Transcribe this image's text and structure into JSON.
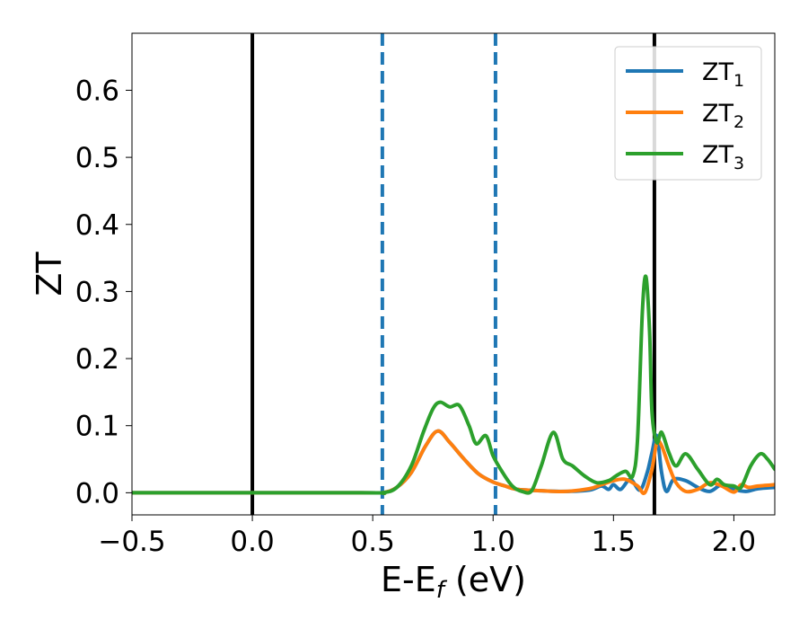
{
  "chart_data": {
    "type": "line",
    "title": "",
    "xlabel": {
      "base": "E-E",
      "sub": "f",
      "rest": " (eV)"
    },
    "ylabel": "ZT",
    "xlim": [
      -0.5,
      2.17
    ],
    "ylim": [
      -0.033,
      0.685
    ],
    "xticks": [
      -0.5,
      0.0,
      0.5,
      1.0,
      1.5,
      2.0
    ],
    "xtick_labels": [
      "−0.5",
      "0.0",
      "0.5",
      "1.0",
      "1.5",
      "2.0"
    ],
    "yticks": [
      0.0,
      0.1,
      0.2,
      0.3,
      0.4,
      0.5,
      0.6
    ],
    "ytick_labels": [
      "0.0",
      "0.1",
      "0.2",
      "0.3",
      "0.4",
      "0.5",
      "0.6"
    ],
    "grid": false,
    "legend_position": "top-right",
    "vlines": [
      {
        "x": 0.0,
        "color": "#000000",
        "style": "solid"
      },
      {
        "x": 0.54,
        "color": "#1f77b4",
        "style": "dashed"
      },
      {
        "x": 1.01,
        "color": "#1f77b4",
        "style": "dashed"
      },
      {
        "x": 1.67,
        "color": "#000000",
        "style": "solid"
      }
    ],
    "series": [
      {
        "name": {
          "base": "ZT",
          "sub": "1"
        },
        "color": "#1f77b4",
        "x": [
          -0.5,
          0.45,
          0.54,
          0.6,
          0.66,
          0.72,
          0.77,
          0.82,
          0.88,
          0.94,
          1.0,
          1.05,
          1.1,
          1.2,
          1.3,
          1.4,
          1.45,
          1.48,
          1.5,
          1.53,
          1.57,
          1.61,
          1.64,
          1.66,
          1.68,
          1.7,
          1.72,
          1.75,
          1.8,
          1.85,
          1.9,
          1.95,
          2.0,
          2.05,
          2.1,
          2.17
        ],
        "y": [
          0.0,
          0.0,
          0.0,
          0.008,
          0.03,
          0.07,
          0.092,
          0.075,
          0.05,
          0.028,
          0.016,
          0.01,
          0.005,
          0.003,
          0.002,
          0.004,
          0.01,
          0.005,
          0.012,
          0.005,
          0.02,
          0.004,
          0.03,
          0.06,
          0.085,
          0.03,
          0.002,
          0.02,
          0.018,
          0.008,
          0.002,
          0.012,
          0.005,
          0.002,
          0.006,
          0.008
        ]
      },
      {
        "name": {
          "base": "ZT",
          "sub": "2"
        },
        "color": "#ff7f0e",
        "x": [
          -0.5,
          0.45,
          0.54,
          0.6,
          0.66,
          0.72,
          0.77,
          0.82,
          0.88,
          0.94,
          1.0,
          1.05,
          1.1,
          1.2,
          1.3,
          1.4,
          1.45,
          1.5,
          1.55,
          1.6,
          1.63,
          1.66,
          1.68,
          1.7,
          1.73,
          1.76,
          1.8,
          1.85,
          1.9,
          1.95,
          2.0,
          2.03,
          2.06,
          2.1,
          2.17
        ],
        "y": [
          0.0,
          0.0,
          0.0,
          0.008,
          0.03,
          0.07,
          0.092,
          0.075,
          0.05,
          0.028,
          0.016,
          0.01,
          0.005,
          0.003,
          0.002,
          0.006,
          0.012,
          0.018,
          0.02,
          0.01,
          0.0,
          0.035,
          0.075,
          0.07,
          0.04,
          0.015,
          0.002,
          0.005,
          0.015,
          0.01,
          0.001,
          0.012,
          0.008,
          0.01,
          0.012
        ]
      },
      {
        "name": {
          "base": "ZT",
          "sub": "3"
        },
        "color": "#2ca02c",
        "x": [
          -0.5,
          0.45,
          0.54,
          0.6,
          0.66,
          0.71,
          0.75,
          0.78,
          0.82,
          0.86,
          0.9,
          0.93,
          0.97,
          1.0,
          1.04,
          1.08,
          1.12,
          1.16,
          1.2,
          1.25,
          1.29,
          1.33,
          1.38,
          1.43,
          1.48,
          1.51,
          1.55,
          1.58,
          1.6,
          1.62,
          1.635,
          1.65,
          1.66,
          1.68,
          1.7,
          1.73,
          1.76,
          1.8,
          1.85,
          1.9,
          1.93,
          1.96,
          2.0,
          2.03,
          2.07,
          2.11,
          2.14,
          2.17
        ],
        "y": [
          0.0,
          0.0,
          0.0,
          0.008,
          0.04,
          0.09,
          0.125,
          0.135,
          0.128,
          0.13,
          0.1,
          0.073,
          0.085,
          0.055,
          0.03,
          0.01,
          0.002,
          0.003,
          0.04,
          0.09,
          0.05,
          0.04,
          0.025,
          0.015,
          0.018,
          0.025,
          0.032,
          0.025,
          0.08,
          0.27,
          0.322,
          0.24,
          0.12,
          0.075,
          0.09,
          0.06,
          0.04,
          0.058,
          0.035,
          0.012,
          0.02,
          0.012,
          0.01,
          0.008,
          0.04,
          0.058,
          0.05,
          0.035
        ]
      }
    ]
  }
}
